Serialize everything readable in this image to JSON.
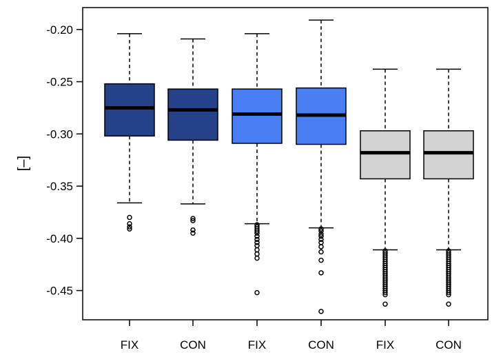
{
  "chart_data": {
    "type": "box",
    "ylabel": "[–]",
    "ylim": [
      -0.478,
      -0.179
    ],
    "y_ticks": [
      -0.2,
      -0.25,
      -0.3,
      -0.35,
      -0.4,
      -0.45
    ],
    "y_tick_labels": [
      "-0.20",
      "-0.25",
      "-0.30",
      "-0.35",
      "-0.40",
      "-0.45"
    ],
    "categories": [
      "FIX",
      "CON",
      "FIX",
      "CON",
      "FIX",
      "CON"
    ],
    "colors": [
      "#25418a",
      "#25418a",
      "#4a7ff4",
      "#4a7ff4",
      "#d3d3d3",
      "#d3d3d3"
    ],
    "boxes": [
      {
        "label": "FIX",
        "whisker_high": -0.204,
        "q3": -0.252,
        "median": -0.275,
        "q1": -0.302,
        "whisker_low": -0.366,
        "outliers": [
          -0.38,
          -0.386,
          -0.389,
          -0.391
        ]
      },
      {
        "label": "CON",
        "whisker_high": -0.209,
        "q3": -0.257,
        "median": -0.277,
        "q1": -0.306,
        "whisker_low": -0.367,
        "outliers": [
          -0.381,
          -0.383,
          -0.392,
          -0.395
        ]
      },
      {
        "label": "FIX",
        "whisker_high": -0.204,
        "q3": -0.257,
        "median": -0.281,
        "q1": -0.309,
        "whisker_low": -0.386,
        "outliers": [
          -0.387,
          -0.389,
          -0.391,
          -0.393,
          -0.395,
          -0.398,
          -0.401,
          -0.404,
          -0.407,
          -0.411,
          -0.415,
          -0.419,
          -0.452
        ]
      },
      {
        "label": "CON",
        "whisker_high": -0.191,
        "q3": -0.256,
        "median": -0.282,
        "q1": -0.31,
        "whisker_low": -0.39,
        "outliers": [
          -0.391,
          -0.393,
          -0.396,
          -0.398,
          -0.401,
          -0.404,
          -0.408,
          -0.413,
          -0.421,
          -0.433,
          -0.47
        ]
      },
      {
        "label": "FIX",
        "whisker_high": -0.238,
        "q3": -0.297,
        "median": -0.318,
        "q1": -0.343,
        "whisker_low": -0.411,
        "outliers": [
          -0.412,
          -0.414,
          -0.416,
          -0.418,
          -0.42,
          -0.422,
          -0.424,
          -0.426,
          -0.428,
          -0.43,
          -0.432,
          -0.434,
          -0.436,
          -0.438,
          -0.44,
          -0.442,
          -0.444,
          -0.446,
          -0.448,
          -0.45,
          -0.452,
          -0.454,
          -0.463
        ]
      },
      {
        "label": "CON",
        "whisker_high": -0.238,
        "q3": -0.297,
        "median": -0.318,
        "q1": -0.343,
        "whisker_low": -0.411,
        "outliers": [
          -0.412,
          -0.414,
          -0.416,
          -0.418,
          -0.42,
          -0.422,
          -0.424,
          -0.426,
          -0.428,
          -0.43,
          -0.432,
          -0.434,
          -0.436,
          -0.438,
          -0.44,
          -0.442,
          -0.444,
          -0.446,
          -0.448,
          -0.45,
          -0.452,
          -0.454,
          -0.463
        ]
      }
    ],
    "grid": false,
    "legend": "none"
  }
}
